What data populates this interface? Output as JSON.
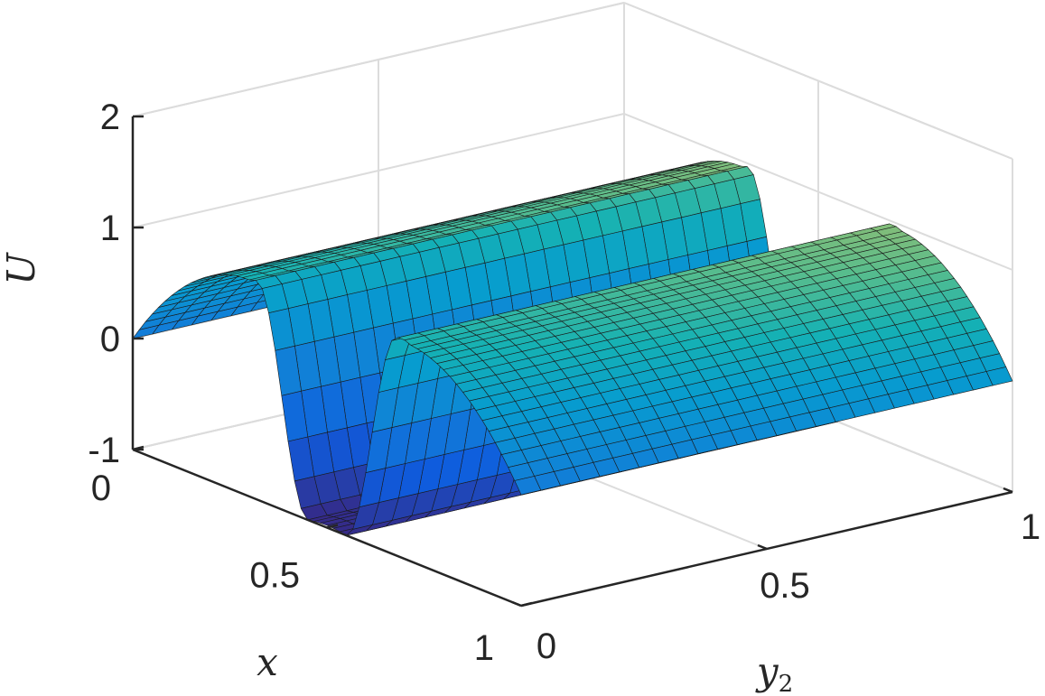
{
  "chart_data": {
    "type": "surface",
    "title": "",
    "xlabel": "x",
    "ylabel": "y",
    "ylabel_subscript": "2",
    "zlabel": "U",
    "xlim": [
      0,
      1
    ],
    "ylim": [
      0,
      1
    ],
    "zlim": [
      -1,
      2
    ],
    "x_ticks": [
      0,
      0.5,
      1
    ],
    "y_ticks": [
      0,
      0.5,
      1
    ],
    "z_ticks": [
      -1,
      0,
      1,
      2
    ],
    "x_tick_labels": [
      "0",
      "0.5",
      "1"
    ],
    "y_tick_labels": [
      "0",
      "0.5",
      "1"
    ],
    "z_tick_labels": [
      "-1",
      "0",
      "1",
      "2"
    ],
    "grid": true,
    "colormap": "parula",
    "surface": {
      "description_points": {
        "x": [
          0,
          0.1,
          0.2,
          0.3,
          0.35,
          0.4,
          0.5,
          0.6,
          0.65,
          0.7,
          0.8,
          0.9,
          1
        ],
        "U": [
          0,
          0.3,
          0.6,
          0.9,
          1.0,
          0.0,
          -1.0,
          0.0,
          1.0,
          0.9,
          0.6,
          0.3,
          0
        ]
      },
      "y_independent": true,
      "y_samples": 25
    }
  }
}
